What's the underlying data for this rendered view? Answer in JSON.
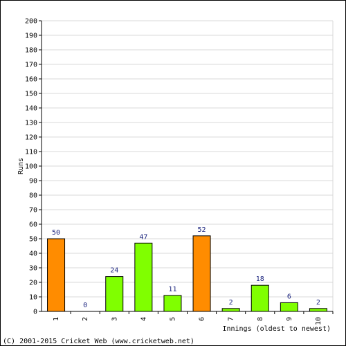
{
  "chart_data": {
    "type": "bar",
    "categories": [
      "1",
      "2",
      "3",
      "4",
      "5",
      "6",
      "7",
      "8",
      "9",
      "10"
    ],
    "values": [
      50,
      0,
      24,
      47,
      11,
      52,
      2,
      18,
      6,
      2
    ],
    "bar_colors": [
      "#ff8c00",
      "#80ff00",
      "#80ff00",
      "#80ff00",
      "#80ff00",
      "#ff8c00",
      "#80ff00",
      "#80ff00",
      "#80ff00",
      "#80ff00"
    ],
    "xlabel": "Innings (oldest to newest)",
    "ylabel": "Runs",
    "ylim": [
      0,
      200
    ],
    "ytick_step": 10,
    "grid": true
  },
  "colors": {
    "grid": "#d9d9d9",
    "axis": "#000000",
    "label": "#1a237e"
  },
  "footer": {
    "copyright": "(C) 2001-2015 Cricket Web (www.cricketweb.net)"
  }
}
